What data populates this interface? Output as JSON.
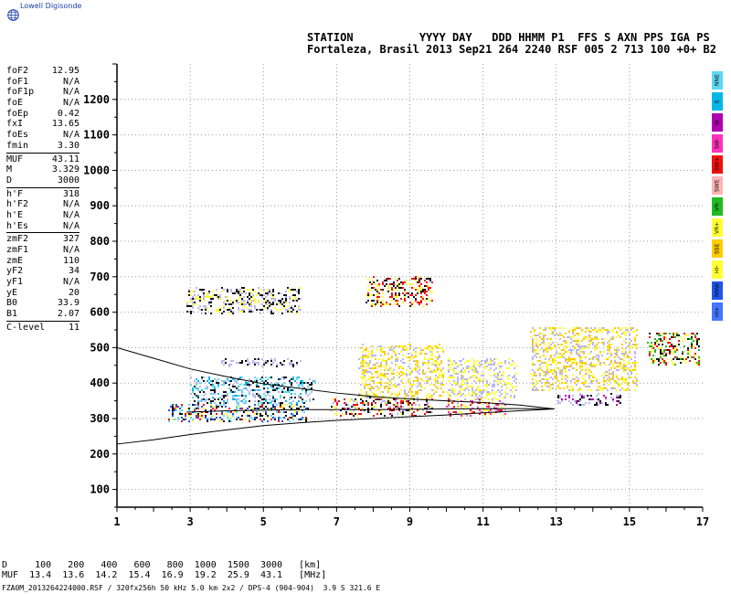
{
  "app": {
    "logo_text": "Lowell Digisonde"
  },
  "header": {
    "line1": "STATION          YYYY DAY   DDD HHMM P1  FFS S AXN PPS IGA PS",
    "line2": "Fortaleza, Brasil 2013 Sep21 264 2240 RSF 005 2 713 100 +0+ B2"
  },
  "params": [
    [
      {
        "k": "foF2",
        "v": "12.95"
      },
      {
        "k": "foF1",
        "v": "N/A"
      },
      {
        "k": "foF1p",
        "v": "N/A"
      },
      {
        "k": "foE",
        "v": "N/A"
      },
      {
        "k": "foEp",
        "v": "0.42"
      },
      {
        "k": "fxI",
        "v": "13.65"
      },
      {
        "k": "foEs",
        "v": "N/A"
      },
      {
        "k": "fmin",
        "v": "3.30"
      }
    ],
    [
      {
        "k": "MUF",
        "v": "43.11"
      },
      {
        "k": "M",
        "v": "3.329"
      },
      {
        "k": "D",
        "v": "3000"
      }
    ],
    [
      {
        "k": "h'F",
        "v": "318"
      },
      {
        "k": "h'F2",
        "v": "N/A"
      },
      {
        "k": "h'E",
        "v": "N/A"
      },
      {
        "k": "h'Es",
        "v": "N/A"
      }
    ],
    [
      {
        "k": "zmF2",
        "v": "327"
      },
      {
        "k": "zmF1",
        "v": "N/A"
      },
      {
        "k": "zmE",
        "v": "110"
      },
      {
        "k": "yF2",
        "v": "34"
      },
      {
        "k": "yF1",
        "v": "N/A"
      },
      {
        "k": "yE",
        "v": "20"
      },
      {
        "k": "B0",
        "v": "33.9"
      },
      {
        "k": "B1",
        "v": "2.07"
      }
    ],
    [
      {
        "k": "C-level",
        "v": "11"
      }
    ]
  ],
  "legend": [
    {
      "label": "NNE",
      "color": "#5fd9f0"
    },
    {
      "label": "E",
      "color": "#00b8e8"
    },
    {
      "label": "W",
      "color": "#b000b0"
    },
    {
      "label": "SW-",
      "color": "#ff33bb"
    },
    {
      "label": "SW+",
      "color": "#ee1111"
    },
    {
      "label": "SWE",
      "color": "#ffb6b6"
    },
    {
      "label": "VR-",
      "color": "#22bb22"
    },
    {
      "label": "VR+",
      "color": "#ffff33"
    },
    {
      "label": "SSE",
      "color": "#ffcc00"
    },
    {
      "label": "HI-",
      "color": "#ffff33"
    },
    {
      "label": "NNW",
      "color": "#2255ee"
    },
    {
      "label": "HI+",
      "color": "#4477ff"
    }
  ],
  "bottom": {
    "d_row": "D     100   200   400   600   800  1000  1500  3000   [km]",
    "muf_row": "MUF  13.4  13.6  14.2  15.4  16.9  19.2  25.9  43.1   [MHz]",
    "footer": "FZA0M_2013264224000.RSF / 320fx256h 50 kHz 5.0 km 2x2 / DPS-4 (904-904)  3.9 S 321.6 E"
  },
  "chart_data": {
    "type": "scatter",
    "title": "",
    "xlabel": "",
    "ylabel": "",
    "xlim": [
      1,
      17
    ],
    "ylim": [
      50,
      1300
    ],
    "x_ticks": [
      1,
      3,
      5,
      7,
      9,
      11,
      13,
      15,
      17
    ],
    "y_ticks": [
      100,
      200,
      300,
      400,
      500,
      600,
      700,
      800,
      900,
      1000,
      1100,
      1200
    ],
    "grid": true,
    "trace": {
      "lower": [
        [
          1,
          228
        ],
        [
          2,
          240
        ],
        [
          3,
          255
        ],
        [
          4,
          268
        ],
        [
          5,
          280
        ],
        [
          6,
          288
        ],
        [
          7,
          295
        ],
        [
          8,
          300
        ],
        [
          9,
          305
        ],
        [
          10,
          310
        ],
        [
          11,
          316
        ],
        [
          12,
          322
        ],
        [
          12.95,
          327
        ]
      ],
      "upper": [
        [
          1,
          500
        ],
        [
          2,
          470
        ],
        [
          3,
          440
        ],
        [
          4,
          418
        ],
        [
          5,
          398
        ],
        [
          6,
          385
        ],
        [
          7,
          372
        ],
        [
          8,
          362
        ],
        [
          9,
          355
        ],
        [
          10,
          350
        ],
        [
          11,
          345
        ],
        [
          12,
          338
        ],
        [
          12.95,
          327
        ]
      ],
      "middle": [
        [
          2.9,
          318
        ],
        [
          4,
          322
        ],
        [
          6,
          325
        ],
        [
          8,
          325
        ],
        [
          10,
          327
        ],
        [
          12,
          328
        ],
        [
          12.95,
          327
        ]
      ]
    },
    "echo_regions": [
      {
        "x0": 2.4,
        "x1": 6.2,
        "y0": 295,
        "y1": 345,
        "colors": [
          "#ee1111",
          "#111111",
          "#5fd9f0",
          "#ffff33",
          "#2255ee"
        ]
      },
      {
        "x0": 3.0,
        "x1": 6.4,
        "y0": 345,
        "y1": 420,
        "colors": [
          "#5fd9f0",
          "#00b8e8",
          "#b8b8f0",
          "#111111"
        ]
      },
      {
        "x0": 6.8,
        "x1": 9.6,
        "y0": 310,
        "y1": 360,
        "colors": [
          "#ee1111",
          "#ffff33",
          "#b8b8f0",
          "#111111"
        ]
      },
      {
        "x0": 10.0,
        "x1": 11.6,
        "y0": 310,
        "y1": 360,
        "colors": [
          "#ee1111",
          "#ffff33",
          "#b8b8f0",
          "#ff33bb"
        ]
      },
      {
        "x0": 7.6,
        "x1": 9.9,
        "y0": 360,
        "y1": 510,
        "colors": [
          "#ffff33",
          "#b8b8f0",
          "#ffcc00"
        ]
      },
      {
        "x0": 10.0,
        "x1": 11.9,
        "y0": 360,
        "y1": 470,
        "colors": [
          "#b8b8f0",
          "#ffff33"
        ]
      },
      {
        "x0": 12.3,
        "x1": 15.2,
        "y0": 380,
        "y1": 560,
        "colors": [
          "#b8b8f0",
          "#ffff33",
          "#ffcc00"
        ]
      },
      {
        "x0": 13.0,
        "x1": 14.8,
        "y0": 340,
        "y1": 370,
        "colors": [
          "#b000b0",
          "#111111",
          "#b8b8f0"
        ]
      },
      {
        "x0": 15.5,
        "x1": 16.9,
        "y0": 455,
        "y1": 545,
        "colors": [
          "#ffff33",
          "#22bb22",
          "#111111",
          "#ee1111"
        ]
      },
      {
        "x0": 3.8,
        "x1": 6.0,
        "y0": 450,
        "y1": 470,
        "colors": [
          "#b8b8f0",
          "#111111"
        ]
      },
      {
        "x0": 2.9,
        "x1": 6.0,
        "y0": 600,
        "y1": 670,
        "colors": [
          "#111111",
          "#ffff33",
          "#b8b8f0"
        ]
      },
      {
        "x0": 7.8,
        "x1": 9.6,
        "y0": 620,
        "y1": 700,
        "colors": [
          "#ffff33",
          "#111111",
          "#ee1111"
        ]
      }
    ]
  }
}
